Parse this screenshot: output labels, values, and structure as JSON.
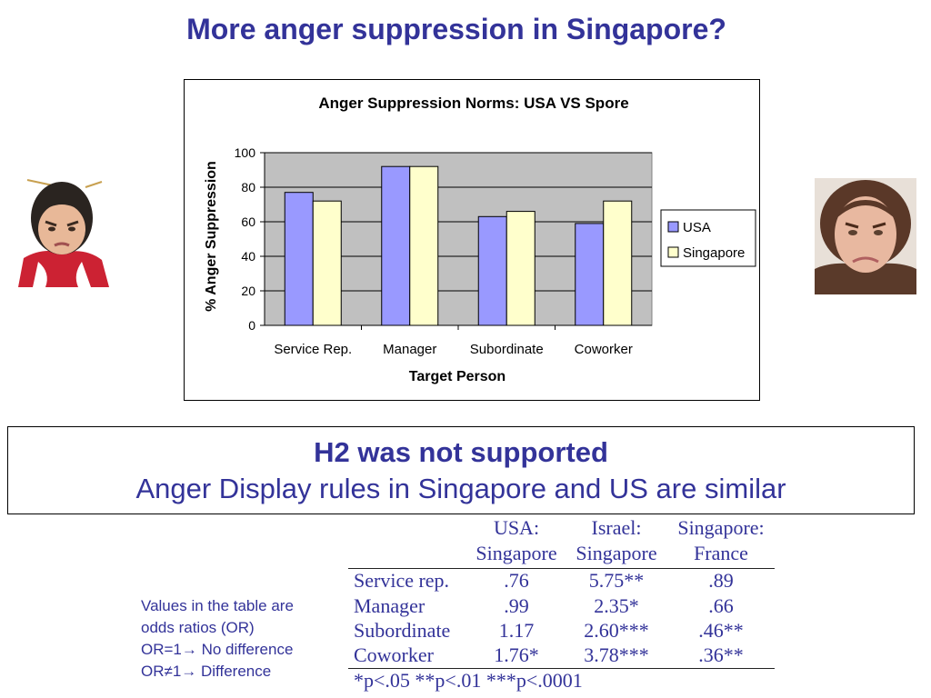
{
  "slide": {
    "title": "More anger suppression in Singapore?",
    "result_heading": "H2 was not supported",
    "result_subtext": "Anger Display rules in Singapore and  US are similar",
    "or_note": [
      "Values in the table are",
      "odds ratios (OR)",
      "OR=1→ No difference",
      "OR≠1→ Difference"
    ]
  },
  "chart_data": {
    "type": "bar",
    "title": "Anger Suppression Norms: USA VS Spore",
    "xlabel": "Target Person",
    "ylabel": "% Anger Suppression",
    "categories": [
      "Service Rep.",
      "Manager",
      "Subordinate",
      "Coworker"
    ],
    "series": [
      {
        "name": "USA",
        "values": [
          77,
          92,
          63,
          59
        ],
        "color": "#9999ff"
      },
      {
        "name": "Singapore",
        "values": [
          72,
          92,
          66,
          72
        ],
        "color": "#ffffcc"
      }
    ],
    "ylim": [
      0,
      100
    ],
    "yticks": [
      0,
      20,
      40,
      60,
      80,
      100
    ],
    "grid": true,
    "plot_background": "#c0c0c0",
    "legend_position": "right"
  },
  "table": {
    "headers": [
      [
        "USA:",
        "Singapore"
      ],
      [
        "Israel:",
        "Singapore"
      ],
      [
        "Singapore:",
        "France"
      ]
    ],
    "rows": [
      {
        "label": "Service rep.",
        "values": [
          ".76",
          "5.75**",
          ".89"
        ]
      },
      {
        "label": "Manager",
        "values": [
          ".99",
          "2.35*",
          ".66"
        ]
      },
      {
        "label": "Subordinate",
        "values": [
          "1.17",
          "2.60***",
          ".46**"
        ]
      },
      {
        "label": "Coworker",
        "values": [
          "1.76*",
          "3.78***",
          ".36**"
        ]
      }
    ],
    "footnote": "*p<.05  **p<.01  ***p<.0001"
  },
  "images": {
    "left_face": "angry-asian-girl-photo",
    "right_face": "frowning-woman-photo"
  }
}
